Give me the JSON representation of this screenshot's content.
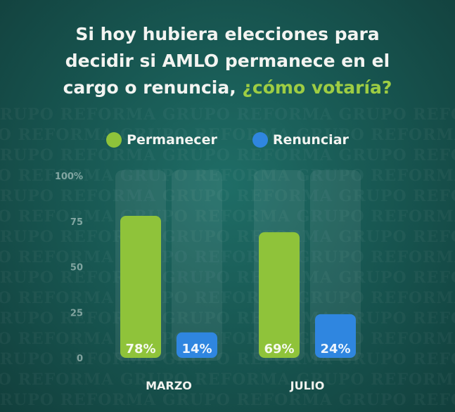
{
  "title": {
    "line1": "Si hoy hubiera elecciones para",
    "line2": "decidir si AMLO permanece en el",
    "line3_part1": "cargo o renuncia, ",
    "line3_highlight": "¿cómo votaría?"
  },
  "watermark_text": "GRUPO REFORMA",
  "colors": {
    "permanecer": "#8fc33a",
    "renunciar": "#2f86e0",
    "highlight": "#9ecd43"
  },
  "chart_data": {
    "type": "bar",
    "title": "Si hoy hubiera elecciones para decidir si AMLO permanece en el cargo o renuncia, ¿cómo votaría?",
    "categories": [
      "MARZO",
      "JULIO"
    ],
    "series": [
      {
        "name": "Permanecer",
        "values": [
          78,
          69
        ],
        "labels": [
          "78%",
          "69%"
        ]
      },
      {
        "name": "Renunciar",
        "values": [
          14,
          24
        ],
        "labels": [
          "14%",
          "24%"
        ]
      }
    ],
    "ylim": [
      0,
      100
    ],
    "yticks": [
      "0",
      "25",
      "50",
      "75",
      "100%"
    ],
    "legend_position": "top",
    "grid": false
  }
}
